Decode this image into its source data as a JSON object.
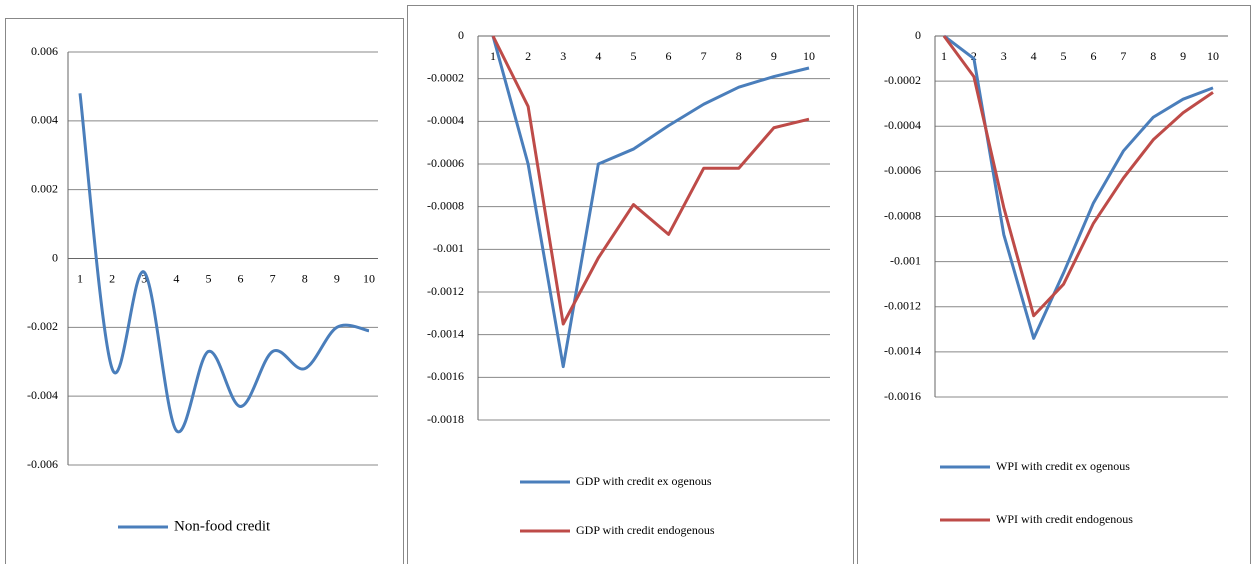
{
  "chart_data": [
    {
      "type": "line",
      "smooth": true,
      "categories": [
        "1",
        "2",
        "3",
        "4",
        "5",
        "6",
        "7",
        "8",
        "9",
        "10"
      ],
      "series": [
        {
          "name": "Non-food credit",
          "color": "#4a7ebb",
          "values": [
            0.0048,
            -0.0032,
            -0.0004,
            -0.005,
            -0.0027,
            -0.0043,
            -0.0027,
            -0.0032,
            -0.002,
            -0.0021
          ]
        }
      ],
      "ylim": [
        -0.006,
        0.006
      ],
      "yticks": [
        -0.006,
        -0.004,
        -0.002,
        0,
        0.002,
        0.004,
        0.006
      ],
      "grid": true,
      "legend": "bottom"
    },
    {
      "type": "line",
      "smooth": false,
      "categories": [
        "1",
        "2",
        "3",
        "4",
        "5",
        "6",
        "7",
        "8",
        "9",
        "10"
      ],
      "series": [
        {
          "name": "GDP with credit ex ogenous",
          "color": "#4a7ebb",
          "values": [
            0,
            -0.0006,
            -0.00155,
            -0.0006,
            -0.00053,
            -0.00042,
            -0.00032,
            -0.00024,
            -0.00019,
            -0.00015
          ]
        },
        {
          "name": "GDP with credit endogenous",
          "color": "#be4b48",
          "values": [
            0,
            -0.00033,
            -0.00135,
            -0.00104,
            -0.00079,
            -0.00093,
            -0.00062,
            -0.00062,
            -0.00043,
            -0.00039
          ]
        }
      ],
      "ylim": [
        -0.0018,
        0
      ],
      "yticks": [
        -0.0018,
        -0.0016,
        -0.0014,
        -0.0012,
        -0.001,
        -0.0008,
        -0.0006,
        -0.0004,
        -0.0002,
        0
      ],
      "grid": true,
      "legend": "bottom"
    },
    {
      "type": "line",
      "smooth": false,
      "categories": [
        "1",
        "2",
        "3",
        "4",
        "5",
        "6",
        "7",
        "8",
        "9",
        "10"
      ],
      "series": [
        {
          "name": "WPI with credit ex ogenous",
          "color": "#4a7ebb",
          "values": [
            0,
            -0.0001,
            -0.00088,
            -0.00134,
            -0.00105,
            -0.00074,
            -0.00051,
            -0.00036,
            -0.00028,
            -0.00023
          ]
        },
        {
          "name": "WPI with credit endogenous",
          "color": "#be4b48",
          "values": [
            0,
            -0.00018,
            -0.00076,
            -0.00124,
            -0.0011,
            -0.00083,
            -0.00063,
            -0.00046,
            -0.00034,
            -0.00025
          ]
        }
      ],
      "ylim": [
        -0.0016,
        0
      ],
      "yticks": [
        -0.0016,
        -0.0014,
        -0.0012,
        -0.001,
        -0.0008,
        -0.0006,
        -0.0004,
        -0.0002,
        0
      ],
      "grid": true,
      "legend": "bottom"
    }
  ]
}
